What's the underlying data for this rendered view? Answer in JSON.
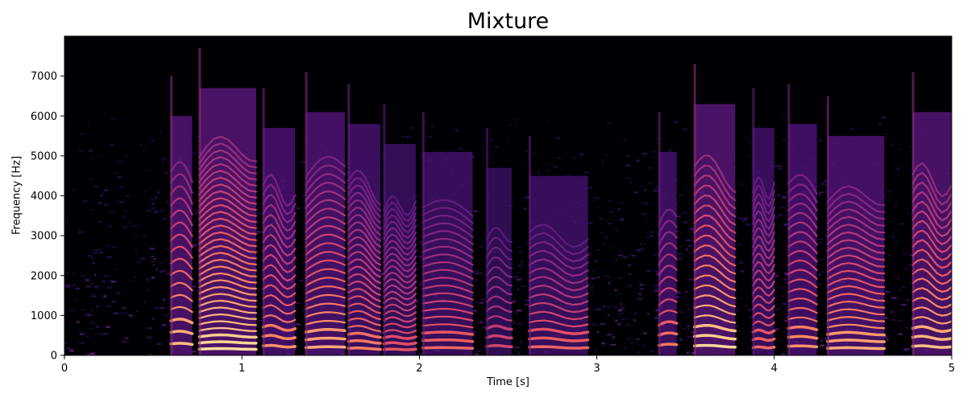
{
  "chart_data": {
    "type": "heatmap",
    "subtype": "spectrogram",
    "title": "Mixture",
    "xlabel": "Time [s]",
    "ylabel": "Frequency [Hz]",
    "xlim": [
      0,
      5
    ],
    "ylim": [
      0,
      8000
    ],
    "xticks": [
      0,
      1,
      2,
      3,
      4,
      5
    ],
    "xtick_labels": [
      "0",
      "1",
      "2",
      "3",
      "4",
      "5"
    ],
    "yticks": [
      0,
      1000,
      2000,
      3000,
      4000,
      5000,
      6000,
      7000
    ],
    "ytick_labels": [
      "0",
      "1000",
      "2000",
      "3000",
      "4000",
      "5000",
      "6000",
      "7000"
    ],
    "colormap": "magma",
    "grid": false,
    "noise_floor_top_hz": 6000,
    "speech_segments": [
      {
        "t0": 0.6,
        "t1": 0.72,
        "f0": 280,
        "bandwidth_hz": 4500,
        "intensity": 0.9
      },
      {
        "t0": 0.76,
        "t1": 1.08,
        "f0": 160,
        "bandwidth_hz": 5200,
        "intensity": 0.95
      },
      {
        "t0": 1.12,
        "t1": 1.3,
        "f0": 230,
        "bandwidth_hz": 4200,
        "intensity": 0.8
      },
      {
        "t0": 1.36,
        "t1": 1.58,
        "f0": 200,
        "bandwidth_hz": 4600,
        "intensity": 0.85
      },
      {
        "t0": 1.6,
        "t1": 1.78,
        "f0": 170,
        "bandwidth_hz": 4300,
        "intensity": 0.75
      },
      {
        "t0": 1.8,
        "t1": 1.98,
        "f0": 150,
        "bandwidth_hz": 3800,
        "intensity": 0.65
      },
      {
        "t0": 2.02,
        "t1": 2.3,
        "f0": 180,
        "bandwidth_hz": 3600,
        "intensity": 0.7
      },
      {
        "t0": 2.38,
        "t1": 2.52,
        "f0": 230,
        "bandwidth_hz": 3200,
        "intensity": 0.6
      },
      {
        "t0": 2.62,
        "t1": 2.95,
        "f0": 200,
        "bandwidth_hz": 3000,
        "intensity": 0.7
      },
      {
        "t0": 3.35,
        "t1": 3.45,
        "f0": 260,
        "bandwidth_hz": 3600,
        "intensity": 0.75
      },
      {
        "t0": 3.55,
        "t1": 3.78,
        "f0": 230,
        "bandwidth_hz": 4800,
        "intensity": 0.95
      },
      {
        "t0": 3.88,
        "t1": 4.0,
        "f0": 200,
        "bandwidth_hz": 4200,
        "intensity": 0.7
      },
      {
        "t0": 4.08,
        "t1": 4.24,
        "f0": 220,
        "bandwidth_hz": 4300,
        "intensity": 0.8
      },
      {
        "t0": 4.3,
        "t1": 4.62,
        "f0": 180,
        "bandwidth_hz": 4000,
        "intensity": 0.85
      },
      {
        "t0": 4.78,
        "t1": 5.0,
        "f0": 220,
        "bandwidth_hz": 4600,
        "intensity": 0.9
      }
    ]
  }
}
